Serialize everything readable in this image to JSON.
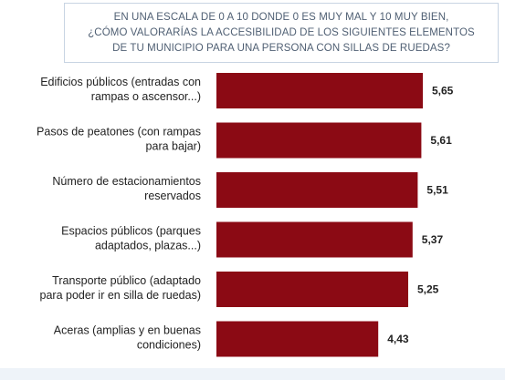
{
  "chart_data": {
    "type": "bar",
    "orientation": "horizontal",
    "title_lines": [
      "EN UNA ESCALA DE 0 A 10 DONDE 0 ES MUY MAL Y 10 MUY BIEN,",
      "¿CÓMO VALORARÍAS LA ACCESIBILIDAD DE LOS SIGUIENTES ELEMENTOS",
      "DE TU MUNICIPIO PARA UNA PERSONA CON SILLAS DE RUEDAS?"
    ],
    "categories": [
      [
        "Edificios públicos (entradas con",
        "rampas o ascensor...)"
      ],
      [
        "Pasos de peatones (con rampas",
        "para bajar)"
      ],
      [
        "Número de estacionamientos",
        "reservados"
      ],
      [
        "Espacios públicos (parques",
        "adaptados, plazas...)"
      ],
      [
        "Transporte público (adaptado",
        "para poder ir en silla de ruedas)"
      ],
      [
        "Aceras (amplias y en buenas",
        "condiciones)"
      ]
    ],
    "values": [
      5.65,
      5.61,
      5.51,
      5.37,
      5.25,
      4.43
    ],
    "value_labels": [
      "5,65",
      "5,61",
      "5,51",
      "5,37",
      "5,25",
      "4,43"
    ],
    "bar_color": "#8b0a14",
    "xlim": [
      0,
      10
    ],
    "grid": false,
    "legend": "none"
  }
}
